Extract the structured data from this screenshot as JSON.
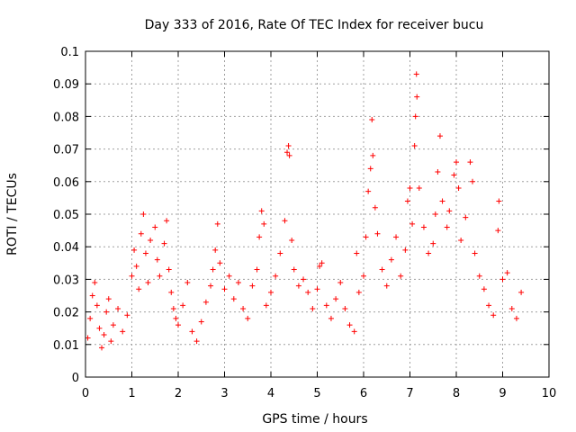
{
  "chart_data": {
    "type": "scatter",
    "title": "Day 333 of 2016, Rate Of TEC Index for receiver bucu",
    "xlabel": "GPS time / hours",
    "ylabel": "ROTI / TECUs",
    "xlim": [
      0,
      10
    ],
    "ylim": [
      0,
      0.1
    ],
    "xticks": [
      "0",
      "1",
      "2",
      "3",
      "4",
      "5",
      "6",
      "7",
      "8",
      "9",
      "10"
    ],
    "yticks": [
      "0",
      "0.01",
      "0.02",
      "0.03",
      "0.04",
      "0.05",
      "0.06",
      "0.07",
      "0.08",
      "0.09",
      "0.1"
    ],
    "grid": true,
    "marker": "+",
    "color": "#ff0000",
    "series": [
      {
        "name": "ROTI",
        "points": [
          [
            0.05,
            0.012
          ],
          [
            0.1,
            0.018
          ],
          [
            0.15,
            0.025
          ],
          [
            0.2,
            0.029
          ],
          [
            0.25,
            0.022
          ],
          [
            0.3,
            0.015
          ],
          [
            0.35,
            0.009
          ],
          [
            0.4,
            0.013
          ],
          [
            0.45,
            0.02
          ],
          [
            0.5,
            0.024
          ],
          [
            0.55,
            0.011
          ],
          [
            0.6,
            0.016
          ],
          [
            0.7,
            0.021
          ],
          [
            0.8,
            0.014
          ],
          [
            0.9,
            0.019
          ],
          [
            1.0,
            0.031
          ],
          [
            1.05,
            0.039
          ],
          [
            1.1,
            0.034
          ],
          [
            1.15,
            0.027
          ],
          [
            1.2,
            0.044
          ],
          [
            1.25,
            0.05
          ],
          [
            1.3,
            0.038
          ],
          [
            1.35,
            0.029
          ],
          [
            1.4,
            0.042
          ],
          [
            1.5,
            0.046
          ],
          [
            1.55,
            0.036
          ],
          [
            1.6,
            0.031
          ],
          [
            1.7,
            0.041
          ],
          [
            1.75,
            0.048
          ],
          [
            1.8,
            0.033
          ],
          [
            1.85,
            0.026
          ],
          [
            1.9,
            0.021
          ],
          [
            1.95,
            0.018
          ],
          [
            2.0,
            0.016
          ],
          [
            2.1,
            0.022
          ],
          [
            2.2,
            0.029
          ],
          [
            2.3,
            0.014
          ],
          [
            2.4,
            0.011
          ],
          [
            2.5,
            0.017
          ],
          [
            2.6,
            0.023
          ],
          [
            2.7,
            0.028
          ],
          [
            2.75,
            0.033
          ],
          [
            2.8,
            0.039
          ],
          [
            2.85,
            0.047
          ],
          [
            2.9,
            0.035
          ],
          [
            3.0,
            0.027
          ],
          [
            3.1,
            0.031
          ],
          [
            3.2,
            0.024
          ],
          [
            3.3,
            0.029
          ],
          [
            3.4,
            0.021
          ],
          [
            3.5,
            0.018
          ],
          [
            3.6,
            0.028
          ],
          [
            3.7,
            0.033
          ],
          [
            3.75,
            0.043
          ],
          [
            3.8,
            0.051
          ],
          [
            3.85,
            0.047
          ],
          [
            3.9,
            0.022
          ],
          [
            4.0,
            0.026
          ],
          [
            4.1,
            0.031
          ],
          [
            4.2,
            0.038
          ],
          [
            4.3,
            0.048
          ],
          [
            4.35,
            0.069
          ],
          [
            4.38,
            0.071
          ],
          [
            4.4,
            0.068
          ],
          [
            4.45,
            0.042
          ],
          [
            4.5,
            0.033
          ],
          [
            4.6,
            0.028
          ],
          [
            4.7,
            0.03
          ],
          [
            4.8,
            0.026
          ],
          [
            4.9,
            0.021
          ],
          [
            5.0,
            0.027
          ],
          [
            5.05,
            0.034
          ],
          [
            5.1,
            0.035
          ],
          [
            5.2,
            0.022
          ],
          [
            5.3,
            0.018
          ],
          [
            5.4,
            0.024
          ],
          [
            5.5,
            0.029
          ],
          [
            5.6,
            0.021
          ],
          [
            5.7,
            0.016
          ],
          [
            5.8,
            0.014
          ],
          [
            5.85,
            0.038
          ],
          [
            5.9,
            0.026
          ],
          [
            6.0,
            0.031
          ],
          [
            6.05,
            0.043
          ],
          [
            6.1,
            0.057
          ],
          [
            6.15,
            0.064
          ],
          [
            6.18,
            0.079
          ],
          [
            6.2,
            0.068
          ],
          [
            6.25,
            0.052
          ],
          [
            6.3,
            0.044
          ],
          [
            6.4,
            0.033
          ],
          [
            6.5,
            0.028
          ],
          [
            6.6,
            0.036
          ],
          [
            6.7,
            0.043
          ],
          [
            6.8,
            0.031
          ],
          [
            6.9,
            0.039
          ],
          [
            6.95,
            0.054
          ],
          [
            7.0,
            0.058
          ],
          [
            7.05,
            0.047
          ],
          [
            7.1,
            0.071
          ],
          [
            7.12,
            0.08
          ],
          [
            7.15,
            0.086
          ],
          [
            7.14,
            0.093
          ],
          [
            7.2,
            0.058
          ],
          [
            7.3,
            0.046
          ],
          [
            7.4,
            0.038
          ],
          [
            7.5,
            0.041
          ],
          [
            7.55,
            0.05
          ],
          [
            7.6,
            0.063
          ],
          [
            7.65,
            0.074
          ],
          [
            7.7,
            0.054
          ],
          [
            7.8,
            0.046
          ],
          [
            7.85,
            0.051
          ],
          [
            7.95,
            0.062
          ],
          [
            8.0,
            0.066
          ],
          [
            8.05,
            0.058
          ],
          [
            8.1,
            0.042
          ],
          [
            8.2,
            0.049
          ],
          [
            8.3,
            0.066
          ],
          [
            8.35,
            0.06
          ],
          [
            8.4,
            0.038
          ],
          [
            8.5,
            0.031
          ],
          [
            8.6,
            0.027
          ],
          [
            8.7,
            0.022
          ],
          [
            8.8,
            0.019
          ],
          [
            8.9,
            0.045
          ],
          [
            8.92,
            0.054
          ],
          [
            9.0,
            0.03
          ],
          [
            9.1,
            0.032
          ],
          [
            9.2,
            0.021
          ],
          [
            9.3,
            0.018
          ],
          [
            9.4,
            0.026
          ]
        ]
      }
    ]
  }
}
